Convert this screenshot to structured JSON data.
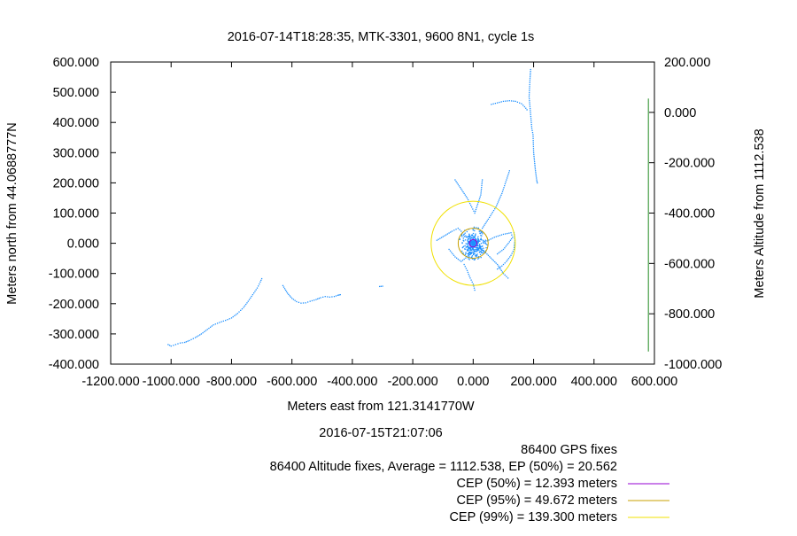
{
  "chart_data": {
    "type": "scatter",
    "title": "2016-07-14T18:28:35, MTK-3301, 9600 8N1, cycle 1s",
    "xlabel": "Meters east from 121.3141770W",
    "ylabel": "Meters north from 44.0688777N",
    "y2label": "Meters Altitude from 1112.538",
    "xlim": [
      -1200,
      600
    ],
    "ylim": [
      -400,
      600
    ],
    "y2lim": [
      -1000,
      200
    ],
    "x_ticks": [
      -1200,
      -1000,
      -800,
      -600,
      -400,
      -200,
      0,
      200,
      400,
      600
    ],
    "x_tick_labels": [
      "-1200.000",
      "-1000.000",
      "-800.000",
      "-600.000",
      "-400.000",
      "-200.000",
      "0.000",
      "200.000",
      "400.000",
      "600.000"
    ],
    "y_ticks": [
      -400,
      -300,
      -200,
      -100,
      0,
      100,
      200,
      300,
      400,
      500,
      600
    ],
    "y_tick_labels": [
      "-400.000",
      "-300.000",
      "-200.000",
      "-100.000",
      "0.000",
      "100.000",
      "200.000",
      "300.000",
      "400.000",
      "500.000",
      "600.000"
    ],
    "y2_ticks": [
      -1000,
      -800,
      -600,
      -400,
      -200,
      0,
      200
    ],
    "y2_tick_labels": [
      "-1000.000",
      "-800.000",
      "-600.000",
      "-400.000",
      "-200.000",
      "0.000",
      "200.000"
    ],
    "grid": false,
    "bottom_date": "2016-07-15T21:07:06",
    "gps_fixes_label": "86400 GPS fixes",
    "altitude_fixes_label": "86400 Altitude fixes, Average = 1112.538, EP (50%) = 20.562",
    "point_color": "#1e90ff",
    "tracks": [
      {
        "points": [
          [
            -1010,
            -335
          ],
          [
            -1000,
            -340
          ],
          [
            -985,
            -335
          ],
          [
            -970,
            -330
          ],
          [
            -955,
            -328
          ],
          [
            -940,
            -322
          ],
          [
            -920,
            -312
          ],
          [
            -900,
            -300
          ],
          [
            -880,
            -285
          ],
          [
            -860,
            -270
          ],
          [
            -840,
            -262
          ],
          [
            -820,
            -255
          ],
          [
            -800,
            -247
          ],
          [
            -780,
            -232
          ],
          [
            -760,
            -212
          ],
          [
            -745,
            -192
          ],
          [
            -730,
            -170
          ],
          [
            -715,
            -148
          ],
          [
            -705,
            -128
          ],
          [
            -700,
            -117
          ]
        ]
      },
      {
        "points": [
          [
            -630,
            -140
          ],
          [
            -615,
            -165
          ],
          [
            -600,
            -182
          ],
          [
            -585,
            -193
          ],
          [
            -570,
            -198
          ],
          [
            -555,
            -197
          ],
          [
            -540,
            -192
          ],
          [
            -520,
            -186
          ],
          [
            -505,
            -180
          ],
          [
            -490,
            -176
          ],
          [
            -475,
            -178
          ],
          [
            -460,
            -176
          ],
          [
            -448,
            -172
          ],
          [
            -440,
            -170
          ]
        ]
      },
      {
        "points": [
          [
            -310,
            -143
          ],
          [
            -300,
            -142
          ]
        ]
      },
      {
        "points": [
          [
            60,
            460
          ],
          [
            80,
            465
          ],
          [
            100,
            470
          ],
          [
            120,
            472
          ],
          [
            140,
            470
          ],
          [
            160,
            462
          ],
          [
            170,
            452
          ],
          [
            178,
            442
          ]
        ]
      },
      {
        "points": [
          [
            190,
            575
          ],
          [
            188,
            545
          ],
          [
            186,
            505
          ],
          [
            185,
            485
          ],
          [
            194,
            380
          ],
          [
            198,
            360
          ],
          [
            200,
            300
          ],
          [
            203,
            270
          ],
          [
            206,
            240
          ],
          [
            210,
            210
          ],
          [
            212,
            200
          ]
        ]
      },
      {
        "points": [
          [
            -60,
            210
          ],
          [
            -40,
            180
          ],
          [
            -20,
            150
          ],
          [
            -5,
            120
          ],
          [
            5,
            100
          ],
          [
            25,
            160
          ],
          [
            30,
            210
          ]
        ]
      },
      {
        "points": [
          [
            30,
            50
          ],
          [
            50,
            80
          ],
          [
            75,
            120
          ],
          [
            95,
            165
          ],
          [
            110,
            210
          ],
          [
            120,
            240
          ]
        ]
      },
      {
        "points": [
          [
            -120,
            10
          ],
          [
            -95,
            25
          ],
          [
            -70,
            40
          ],
          [
            -50,
            50
          ],
          [
            -30,
            30
          ],
          [
            -10,
            10
          ]
        ]
      },
      {
        "points": [
          [
            -80,
            -20
          ],
          [
            -60,
            -45
          ],
          [
            -40,
            -60
          ],
          [
            -20,
            -45
          ],
          [
            0,
            -30
          ]
        ]
      },
      {
        "points": [
          [
            20,
            -10
          ],
          [
            50,
            -40
          ],
          [
            80,
            -70
          ],
          [
            100,
            -100
          ],
          [
            115,
            -115
          ]
        ]
      },
      {
        "points": [
          [
            40,
            5
          ],
          [
            70,
            20
          ],
          [
            100,
            30
          ],
          [
            125,
            35
          ],
          [
            130,
            20
          ],
          [
            120,
            5
          ],
          [
            100,
            -20
          ],
          [
            80,
            -35
          ]
        ]
      },
      {
        "points": [
          [
            -30,
            -70
          ],
          [
            -20,
            -90
          ],
          [
            -10,
            -115
          ],
          [
            0,
            -135
          ],
          [
            5,
            -155
          ]
        ]
      },
      {
        "points": [
          [
            80,
            -85
          ],
          [
            95,
            -75
          ],
          [
            110,
            -60
          ],
          [
            125,
            -40
          ],
          [
            135,
            -20
          ],
          [
            138,
            10
          ],
          [
            135,
            35
          ]
        ]
      }
    ],
    "cluster": {
      "center": [
        0,
        0
      ],
      "points": 520
    },
    "altitude_series": {
      "color": "#228b22",
      "x": 580,
      "min": -950,
      "max": 55
    },
    "cep": [
      {
        "name": "CEP (50%) = 12.393 meters",
        "radius": 12.393,
        "color": "#9400d3"
      },
      {
        "name": "CEP (95%) = 49.672 meters",
        "radius": 49.672,
        "color": "#c8a000"
      },
      {
        "name": "CEP (99%) = 139.300 meters",
        "radius": 139.3,
        "color": "#f0e000"
      }
    ]
  }
}
